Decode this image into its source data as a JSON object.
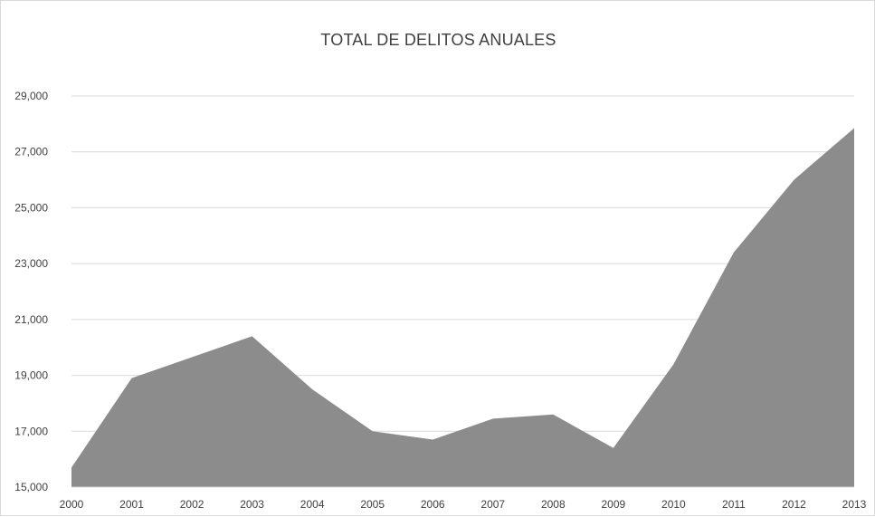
{
  "chart_data": {
    "type": "area",
    "title": "TOTAL DE DELITOS ANUALES",
    "xlabel": "",
    "ylabel": "",
    "x": [
      "2000",
      "2001",
      "2002",
      "2003",
      "2004",
      "2005",
      "2006",
      "2007",
      "2008",
      "2009",
      "2010",
      "2011",
      "2012",
      "2013"
    ],
    "series": [
      {
        "values": [
          15700,
          18900,
          19650,
          20400,
          18500,
          17000,
          16700,
          17450,
          17600,
          16400,
          19400,
          23400,
          26000,
          27850
        ]
      }
    ],
    "ylim": [
      15000,
      29000
    ],
    "yticks": [
      "15,000",
      "17,000",
      "19,000",
      "21,000",
      "23,000",
      "25,000",
      "27,000",
      "29,000"
    ],
    "ytick_values": [
      15000,
      17000,
      19000,
      21000,
      23000,
      25000,
      27000,
      29000
    ],
    "grid": true,
    "legend": "none",
    "colors": {
      "area": "#8c8c8c",
      "grid": "#d9d9d9",
      "text": "#404040"
    }
  }
}
